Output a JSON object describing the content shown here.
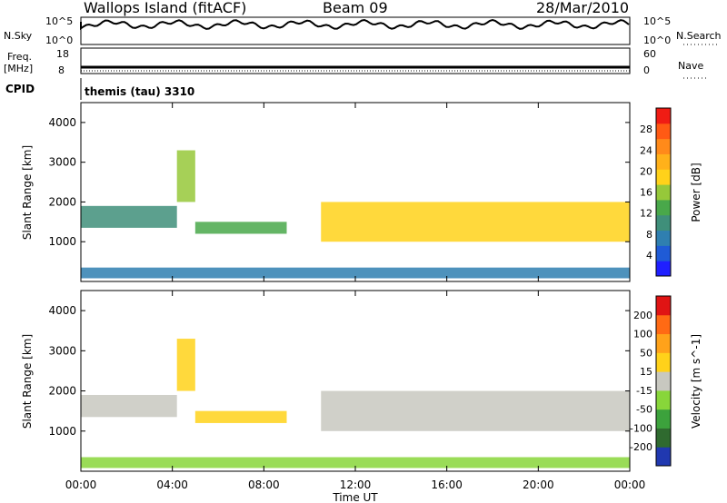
{
  "header": {
    "station": "Wallops Island (fitACF)",
    "beam": "Beam 09",
    "date": "28/Mar/2010"
  },
  "top_panels": {
    "nsky_label": "N.Sky",
    "nsearch_label": "N.Search",
    "freq_label_1": "Freq.",
    "freq_label_2": "[MHz]",
    "nave_label": "Nave",
    "cpid_label": "CPID",
    "cpid_value": "themis (tau) 3310",
    "noise_ticks_left": [
      "10^5",
      "10^0"
    ],
    "noise_ticks_right": [
      "10^5",
      "10^0"
    ],
    "freq_ticks": [
      "18",
      "8"
    ],
    "nave_ticks": [
      "60",
      "0"
    ]
  },
  "chart_data": [
    {
      "type": "heatmap",
      "panel": "power",
      "xlabel": "Time UT",
      "ylabel": "Slant Range [km]",
      "x_ticks": [
        "00:00",
        "04:00",
        "08:00",
        "12:00",
        "16:00",
        "20:00",
        "00:00"
      ],
      "y_ticks": [
        "1000",
        "2000",
        "3000",
        "4000"
      ],
      "ylim": [
        0,
        4500
      ],
      "colorbar": {
        "label": "Power [dB]",
        "ticks": [
          "4",
          "8",
          "12",
          "16",
          "20",
          "24",
          "28"
        ],
        "range": [
          0,
          30
        ],
        "colors": [
          "#1f1fff",
          "#1f5bd6",
          "#2f7fb0",
          "#3f8f7a",
          "#49a84a",
          "#96c83a",
          "#ffd21a",
          "#ffb11a",
          "#ff8a1a",
          "#ff5a14",
          "#f01c14"
        ]
      },
      "bands": [
        {
          "t_start": 0.0,
          "t_end": 4.2,
          "r_start": 1350,
          "r_end": 1900,
          "value": 10
        },
        {
          "t_start": 4.2,
          "t_end": 5.0,
          "r_start": 2000,
          "r_end": 3300,
          "value": 14
        },
        {
          "t_start": 5.0,
          "t_end": 9.0,
          "r_start": 1200,
          "r_end": 1500,
          "value": 13
        },
        {
          "t_start": 10.5,
          "t_end": 24.0,
          "r_start": 1000,
          "r_end": 2000,
          "value": 18
        },
        {
          "t_start": 0.0,
          "t_end": 24.0,
          "r_start": 80,
          "r_end": 350,
          "value": 6
        }
      ]
    },
    {
      "type": "heatmap",
      "panel": "velocity",
      "xlabel": "Time UT",
      "ylabel": "Slant Range [km]",
      "x_ticks": [
        "00:00",
        "04:00",
        "08:00",
        "12:00",
        "16:00",
        "20:00",
        "00:00"
      ],
      "y_ticks": [
        "1000",
        "2000",
        "3000",
        "4000"
      ],
      "ylim": [
        0,
        4500
      ],
      "colorbar": {
        "label": "Velocity [m s^-1]",
        "ticks": [
          "200",
          "100",
          "50",
          "15",
          "-15",
          "-50",
          "-100",
          "-200"
        ],
        "range": [
          -250,
          250
        ],
        "colors": [
          "#2038b0",
          "#2f6a2f",
          "#3ca23c",
          "#88d63a",
          "#c8c8c0",
          "#ffd21a",
          "#ffa21a",
          "#ff6a14",
          "#e01414"
        ]
      },
      "bands": [
        {
          "t_start": 0.0,
          "t_end": 4.2,
          "r_start": 1350,
          "r_end": 1900,
          "value": 0
        },
        {
          "t_start": 4.2,
          "t_end": 5.0,
          "r_start": 2000,
          "r_end": 3300,
          "value": 40
        },
        {
          "t_start": 5.0,
          "t_end": 9.0,
          "r_start": 1200,
          "r_end": 1500,
          "value": 60
        },
        {
          "t_start": 10.5,
          "t_end": 24.0,
          "r_start": 1000,
          "r_end": 2000,
          "value": 0
        },
        {
          "t_start": 0.0,
          "t_end": 24.0,
          "r_start": 80,
          "r_end": 350,
          "value": -30
        }
      ]
    }
  ]
}
